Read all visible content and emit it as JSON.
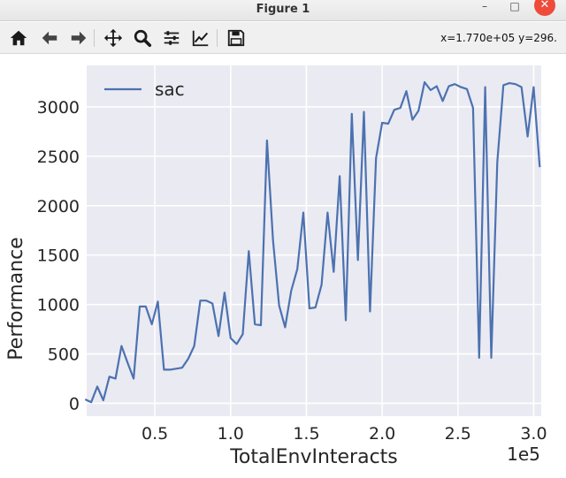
{
  "window": {
    "title": "Figure 1",
    "minimize_label": "–",
    "maximize_label": "□",
    "close_label": "✕"
  },
  "toolbar": {
    "buttons": [
      {
        "name": "home-button",
        "icon": "home-icon"
      },
      {
        "name": "back-button",
        "icon": "arrow-left-icon"
      },
      {
        "name": "forward-button",
        "icon": "arrow-right-icon"
      },
      {
        "name": "pan-button",
        "icon": "move-icon"
      },
      {
        "name": "zoom-button",
        "icon": "magnifier-icon"
      },
      {
        "name": "subplots-button",
        "icon": "sliders-icon"
      },
      {
        "name": "edit-axis-button",
        "icon": "line-chart-icon"
      },
      {
        "name": "save-button",
        "icon": "floppy-disk-icon"
      }
    ],
    "coordinates": "x=1.770e+05 y=296."
  },
  "chart_data": {
    "type": "line",
    "xlabel": "TotalEnvInteracts",
    "ylabel": "Performance",
    "x_offset_label": "1e5",
    "xlim": [
      5000,
      305000
    ],
    "ylim": [
      -130,
      3420
    ],
    "x_ticks": [
      50000,
      100000,
      150000,
      200000,
      250000,
      300000
    ],
    "x_tick_labels": [
      "0.5",
      "1.0",
      "1.5",
      "2.0",
      "2.5",
      "3.0"
    ],
    "y_ticks": [
      0,
      500,
      1000,
      1500,
      2000,
      2500,
      3000
    ],
    "y_tick_labels": [
      "0",
      "500",
      "1000",
      "1500",
      "2000",
      "2500",
      "3000"
    ],
    "grid": true,
    "legend_position": "upper-left",
    "background_color": "#eaeaf2",
    "grid_color": "#ffffff",
    "series": [
      {
        "name": "sac",
        "color": "#4c72b0",
        "x": [
          4000,
          8000,
          12000,
          16000,
          20000,
          24000,
          28000,
          32000,
          36000,
          40000,
          44000,
          48000,
          52000,
          56000,
          60000,
          64000,
          68000,
          72000,
          76000,
          80000,
          84000,
          88000,
          92000,
          96000,
          100000,
          104000,
          108000,
          112000,
          116000,
          120000,
          124000,
          128000,
          132000,
          136000,
          140000,
          144000,
          148000,
          152000,
          156000,
          160000,
          164000,
          168000,
          172000,
          176000,
          180000,
          184000,
          188000,
          192000,
          196000,
          200000,
          204000,
          208000,
          212000,
          216000,
          220000,
          224000,
          228000,
          232000,
          236000,
          240000,
          244000,
          248000,
          252000,
          256000,
          260000,
          264000,
          268000,
          272000,
          276000,
          280000,
          284000,
          288000,
          292000,
          296000,
          300000,
          304000
        ],
        "y": [
          40,
          10,
          170,
          30,
          270,
          250,
          580,
          410,
          250,
          980,
          980,
          800,
          1030,
          340,
          340,
          350,
          360,
          450,
          580,
          1040,
          1040,
          1010,
          680,
          1120,
          660,
          600,
          700,
          1540,
          800,
          790,
          2660,
          1650,
          990,
          770,
          1140,
          1360,
          1930,
          960,
          970,
          1200,
          1930,
          1330,
          2300,
          840,
          2930,
          1450,
          2950,
          930,
          2480,
          2840,
          2830,
          2970,
          2990,
          3160,
          2870,
          2960,
          3250,
          3170,
          3210,
          3060,
          3210,
          3230,
          3200,
          3180,
          2990,
          460,
          3200,
          460,
          2440,
          3220,
          3240,
          3230,
          3200,
          2700,
          3200,
          2390
        ]
      }
    ]
  }
}
